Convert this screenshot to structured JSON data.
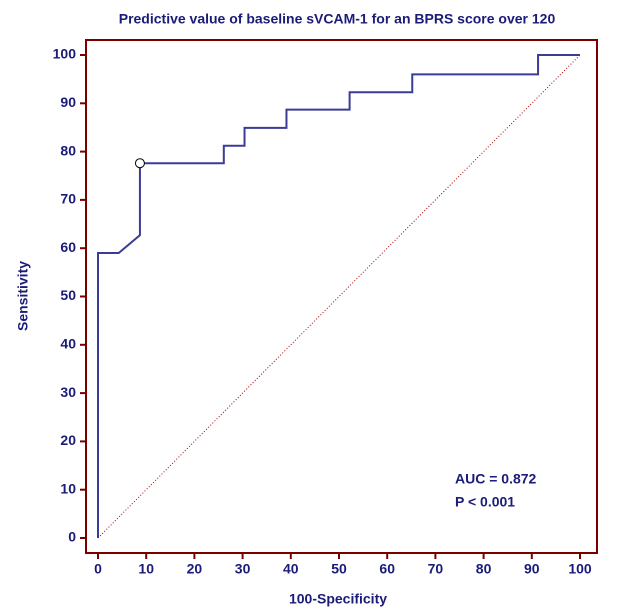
{
  "chart_data": {
    "type": "line",
    "title": "Predictive value of baseline sVCAM-1 for an BPRS score over 120",
    "x_label": "100-Specificity",
    "y_label": "Sensitivity",
    "series": [
      {
        "name": "sVCAM-1",
        "color": "#3b3b98",
        "x": [
          0,
          0,
          4.3,
          8.7,
          8.7,
          26.1,
          26.1,
          30.4,
          30.4,
          39.1,
          39.1,
          52.2,
          52.2,
          65.2,
          65.2,
          91.3,
          91.3,
          100
        ],
        "values": [
          0,
          59,
          59,
          62.7,
          77.6,
          77.6,
          81.2,
          81.2,
          84.9,
          84.9,
          88.7,
          88.7,
          92.3,
          92.3,
          96,
          96,
          100,
          100
        ]
      }
    ],
    "highlight_point": {
      "x": 8.7,
      "y": 77.6
    },
    "reference_line_color": "#a00000",
    "frame_color": "#7a0000",
    "xlim": [
      0,
      100
    ],
    "ylim": [
      0,
      100
    ],
    "xticks": [
      0,
      10,
      20,
      30,
      40,
      50,
      60,
      70,
      80,
      90,
      100
    ],
    "yticks": [
      0,
      10,
      20,
      30,
      40,
      50,
      60,
      70,
      80,
      90,
      100
    ],
    "annotations": [
      "AUC = 0.872",
      "P < 0.001"
    ]
  }
}
